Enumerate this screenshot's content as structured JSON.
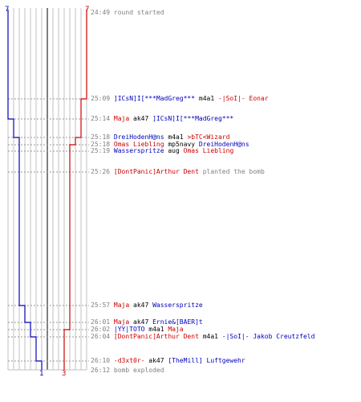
{
  "team_counts": {
    "blue_start": "7",
    "red_start": "7",
    "blue_end": "1",
    "red_end": "3"
  },
  "colors": {
    "blue_team": "#0000bb",
    "red_team": "#cc0000",
    "neutral": "#808080",
    "grid": "#c0c0c0"
  },
  "events": [
    {
      "time": "24:49",
      "parts": [
        {
          "t": "round started",
          "c": "gray"
        }
      ]
    },
    {
      "time": "25:09",
      "parts": [
        {
          "t": "]ICsN]I[***MadGreg***",
          "c": "blue"
        },
        {
          "t": " m4a1 ",
          "c": "black"
        },
        {
          "t": "-|SoI|- Eonar",
          "c": "red"
        }
      ]
    },
    {
      "time": "25:14",
      "parts": [
        {
          "t": "Maja",
          "c": "red"
        },
        {
          "t": " ak47 ",
          "c": "black"
        },
        {
          "t": "]ICsN]I[***MadGreg***",
          "c": "blue"
        }
      ]
    },
    {
      "time": "25:18",
      "parts": [
        {
          "t": "DreiHodenH@ns",
          "c": "blue"
        },
        {
          "t": " m4a1 ",
          "c": "black"
        },
        {
          "t": ">bTC<Wizard",
          "c": "red"
        }
      ]
    },
    {
      "time": "25:18",
      "parts": [
        {
          "t": "Omas Liebling",
          "c": "red"
        },
        {
          "t": " mp5navy ",
          "c": "black"
        },
        {
          "t": "DreiHodenH@ns",
          "c": "blue"
        }
      ]
    },
    {
      "time": "25:19",
      "parts": [
        {
          "t": "Wasserspritze",
          "c": "blue"
        },
        {
          "t": " aug ",
          "c": "black"
        },
        {
          "t": "Omas Liebling",
          "c": "red"
        }
      ]
    },
    {
      "time": "25:26",
      "parts": [
        {
          "t": "[DontPanic]Arthur Dent",
          "c": "red"
        },
        {
          "t": " planted the bomb",
          "c": "gray"
        }
      ]
    },
    {
      "time": "25:57",
      "parts": [
        {
          "t": "Maja",
          "c": "red"
        },
        {
          "t": " ak47 ",
          "c": "black"
        },
        {
          "t": "Wasserspritze",
          "c": "blue"
        }
      ]
    },
    {
      "time": "26:01",
      "parts": [
        {
          "t": "Maja",
          "c": "red"
        },
        {
          "t": " ak47 ",
          "c": "black"
        },
        {
          "t": "Ernie&[BAER]t",
          "c": "blue"
        }
      ]
    },
    {
      "time": "26:02",
      "parts": [
        {
          "t": "|YY|TOTO",
          "c": "blue"
        },
        {
          "t": " m4a1 ",
          "c": "black"
        },
        {
          "t": "Maja",
          "c": "red"
        }
      ]
    },
    {
      "time": "26:04",
      "parts": [
        {
          "t": "[DontPanic]Arthur Dent",
          "c": "red"
        },
        {
          "t": " m4a1 ",
          "c": "black"
        },
        {
          "t": "-|SoI|- Jakob Creutzfeld",
          "c": "blue"
        }
      ]
    },
    {
      "time": "26:10",
      "parts": [
        {
          "t": "-d3xt0r-",
          "c": "red"
        },
        {
          "t": " ak47 ",
          "c": "black"
        },
        {
          "t": "[TheMill] Luftgewehr",
          "c": "blue"
        }
      ]
    },
    {
      "time": "26:12",
      "parts": [
        {
          "t": "bomb exploded",
          "c": "gray"
        }
      ]
    }
  ]
}
